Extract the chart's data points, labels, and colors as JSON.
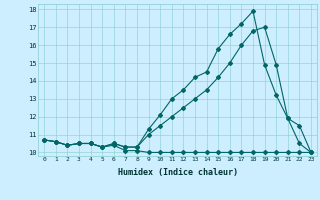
{
  "xlabel": "Humidex (Indice chaleur)",
  "bg_color": "#cceeff",
  "line_color": "#006666",
  "xlim": [
    -0.5,
    23.5
  ],
  "ylim": [
    9.8,
    18.3
  ],
  "xticks": [
    0,
    1,
    2,
    3,
    4,
    5,
    6,
    7,
    8,
    9,
    10,
    11,
    12,
    13,
    14,
    15,
    16,
    17,
    18,
    19,
    20,
    21,
    22,
    23
  ],
  "yticks": [
    10,
    11,
    12,
    13,
    14,
    15,
    16,
    17,
    18
  ],
  "line1_x": [
    0,
    1,
    2,
    3,
    4,
    5,
    6,
    7,
    8,
    9,
    10,
    11,
    12,
    13,
    14,
    15,
    16,
    17,
    18,
    19,
    20,
    21,
    22,
    23
  ],
  "line1_y": [
    10.7,
    10.6,
    10.4,
    10.5,
    10.5,
    10.3,
    10.4,
    10.1,
    10.1,
    10.0,
    10.0,
    10.0,
    10.0,
    10.0,
    10.0,
    10.0,
    10.0,
    10.0,
    10.0,
    10.0,
    10.0,
    10.0,
    10.0,
    10.0
  ],
  "line2_x": [
    0,
    1,
    2,
    3,
    4,
    5,
    6,
    7,
    8,
    9,
    10,
    11,
    12,
    13,
    14,
    15,
    16,
    17,
    18,
    19,
    20,
    21,
    22,
    23
  ],
  "line2_y": [
    10.7,
    10.6,
    10.4,
    10.5,
    10.5,
    10.3,
    10.5,
    10.3,
    10.3,
    11.3,
    12.1,
    13.0,
    13.5,
    14.2,
    14.5,
    15.8,
    16.6,
    17.2,
    17.9,
    14.9,
    13.2,
    11.9,
    10.5,
    10.0
  ],
  "line3_x": [
    0,
    1,
    2,
    3,
    4,
    5,
    6,
    7,
    8,
    9,
    10,
    11,
    12,
    13,
    14,
    15,
    16,
    17,
    18,
    19,
    20,
    21,
    22,
    23
  ],
  "line3_y": [
    10.7,
    10.6,
    10.4,
    10.5,
    10.5,
    10.3,
    10.5,
    10.3,
    10.3,
    11.0,
    11.5,
    12.0,
    12.5,
    13.0,
    13.5,
    14.2,
    15.0,
    16.0,
    16.8,
    17.0,
    14.9,
    11.9,
    11.5,
    10.0
  ]
}
